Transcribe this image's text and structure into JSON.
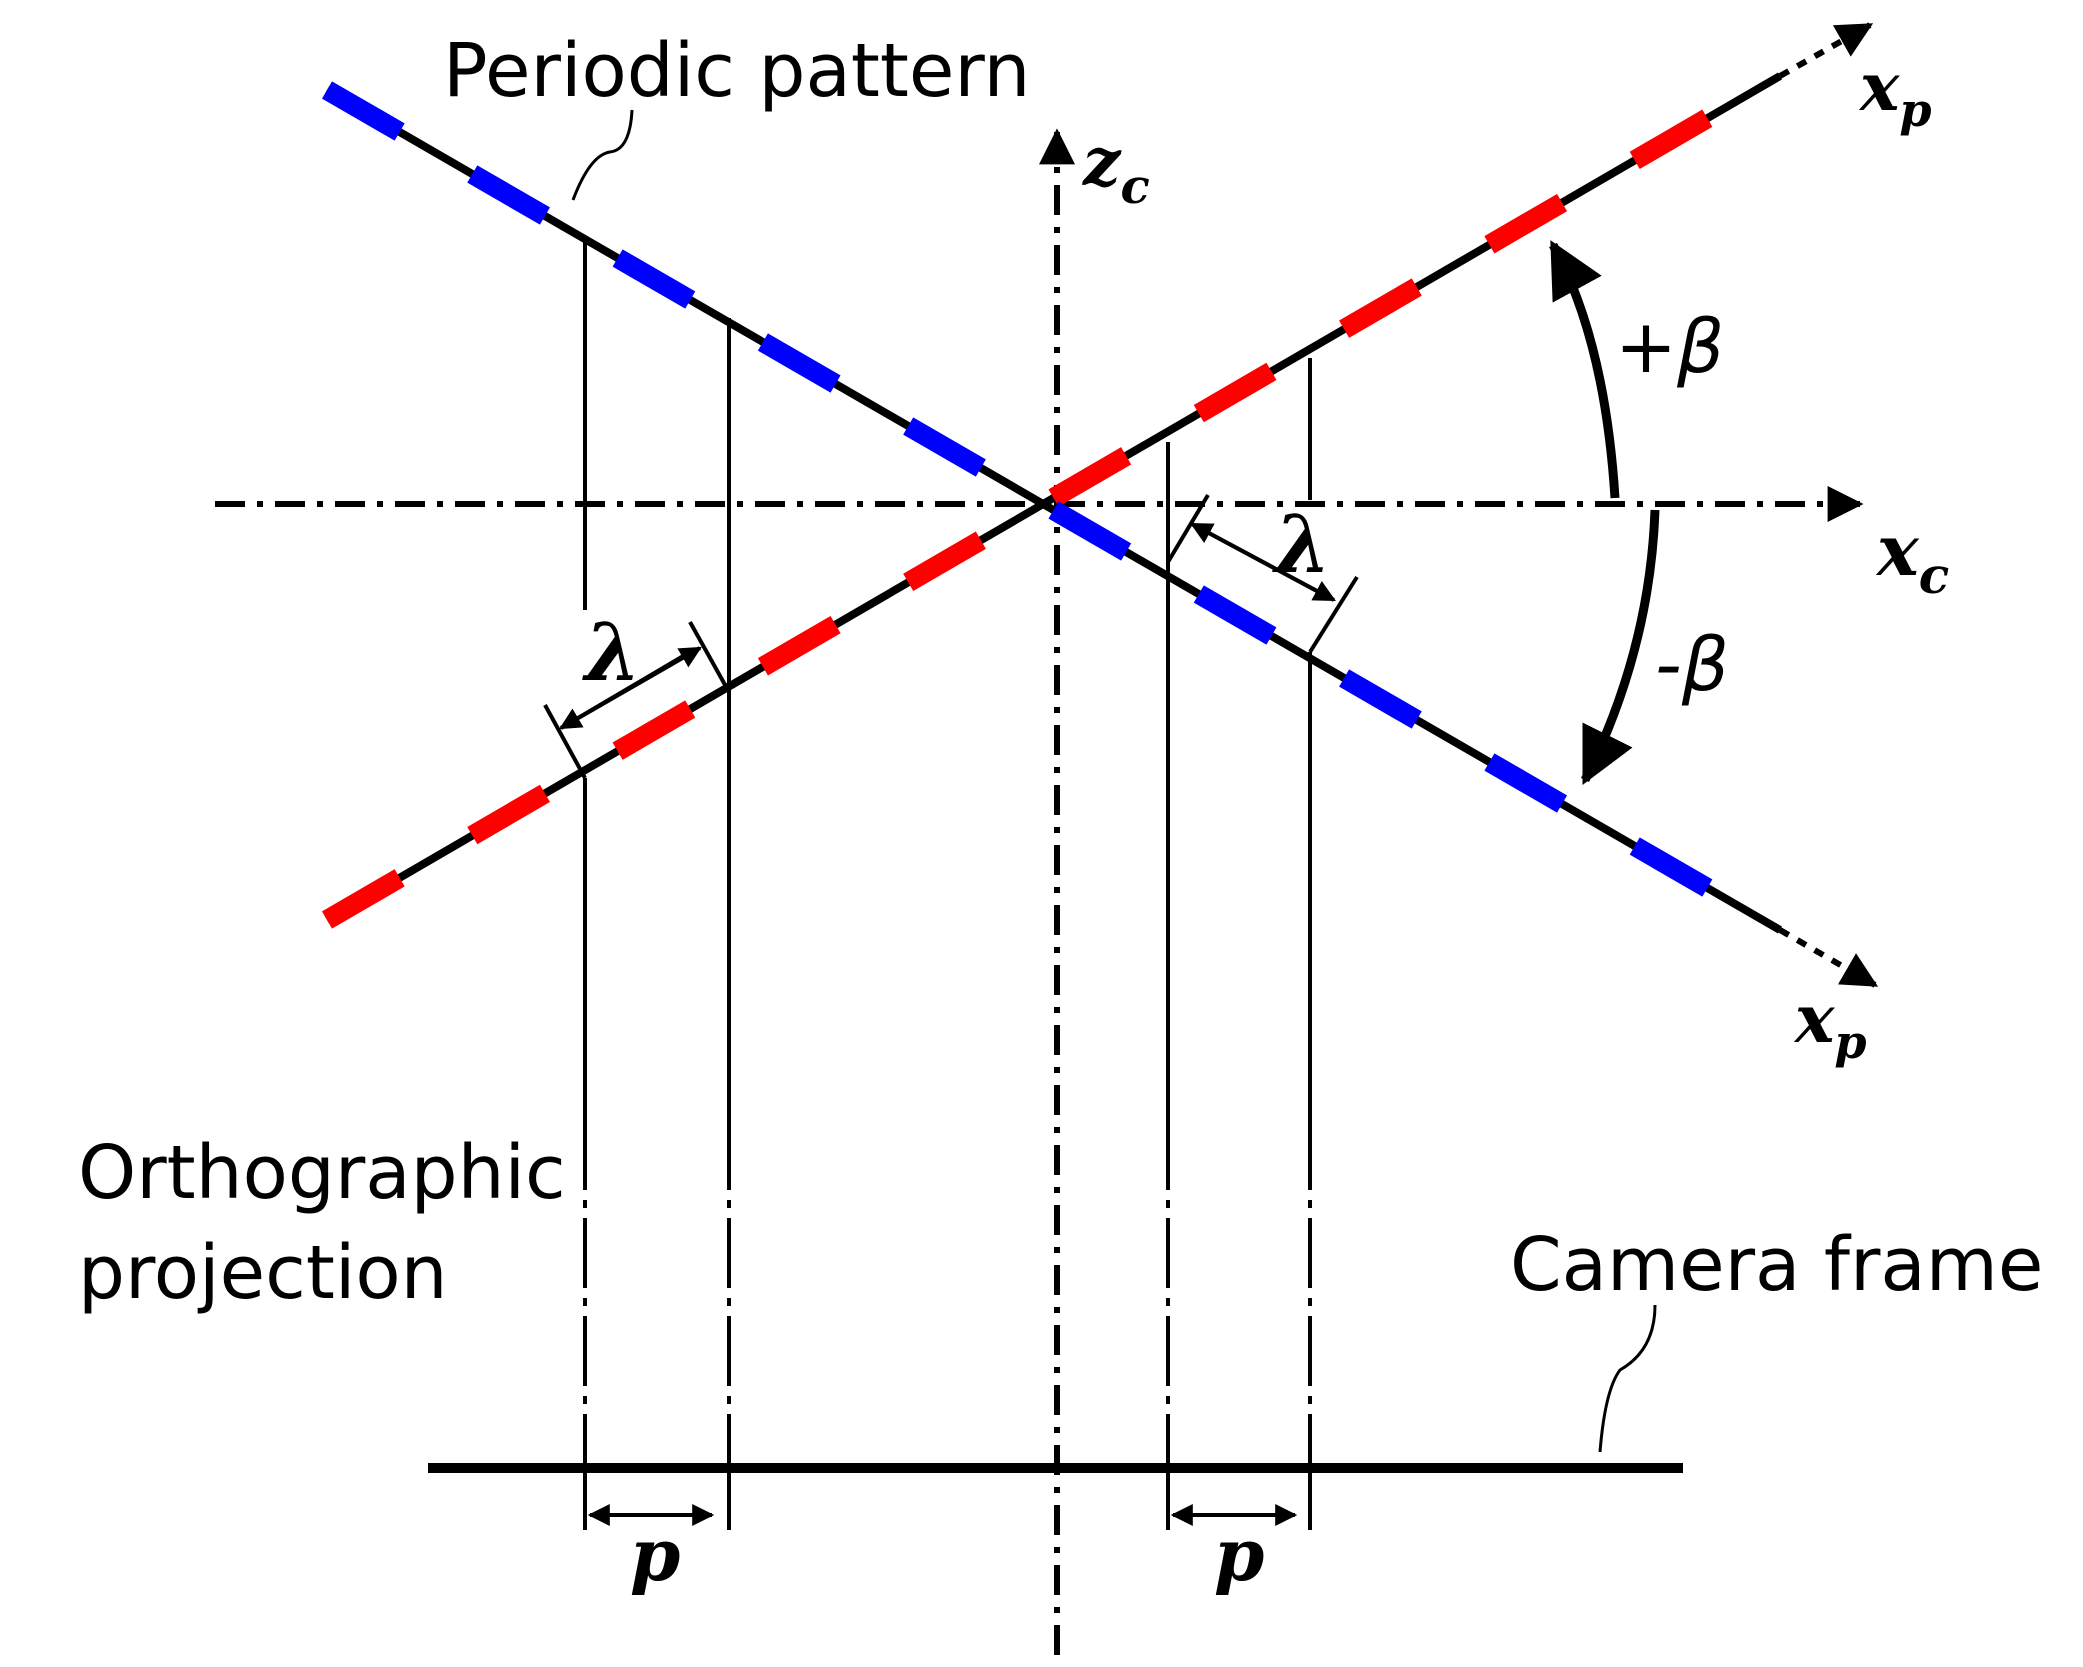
{
  "labels": {
    "periodic_pattern": "Periodic pattern",
    "orthographic_line1": "Orthographic",
    "orthographic_line2": "projection",
    "camera_frame": "Camera frame"
  },
  "axes": {
    "zc": {
      "base": "z",
      "sub": "c"
    },
    "xc": {
      "base": "x",
      "sub": "c"
    },
    "xp_upper": {
      "base": "x",
      "sub": "p"
    },
    "xp_lower": {
      "base": "x",
      "sub": "p"
    }
  },
  "symbols": {
    "lambda_left": "λ",
    "lambda_right": "λ",
    "p_left": "p",
    "p_right": "p",
    "plus_beta": "+β",
    "minus_beta": "-β"
  },
  "colors": {
    "line": "#000000",
    "pattern_plus": "#ff0000",
    "pattern_minus": "#0000ff"
  }
}
